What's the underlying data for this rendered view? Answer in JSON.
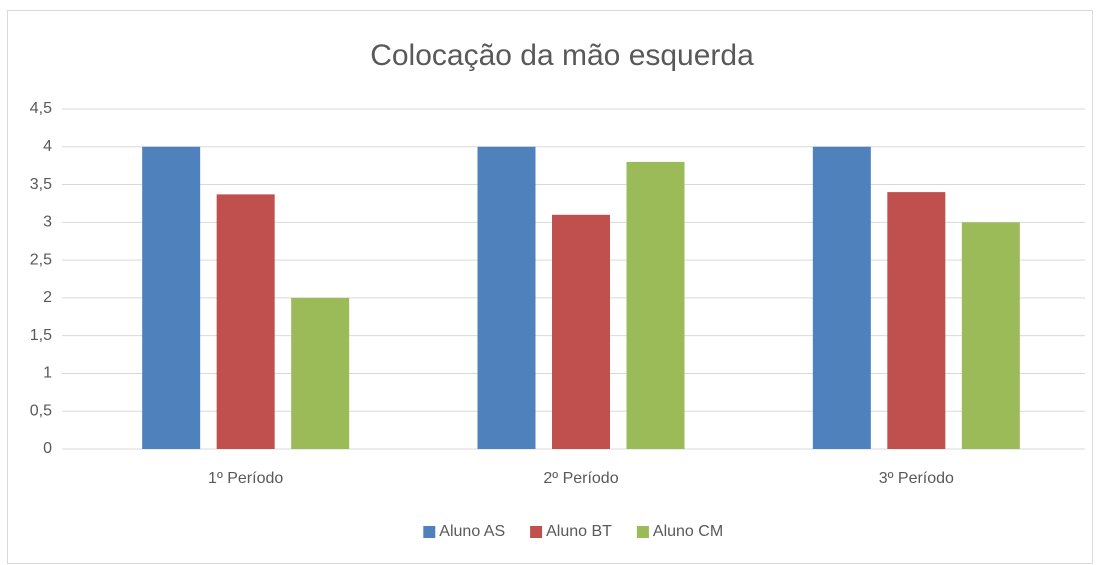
{
  "chart_data": {
    "type": "bar",
    "title": "Colocação da mão esquerda",
    "categories": [
      "1º Período",
      "2º Período",
      "3º Período"
    ],
    "series": [
      {
        "name": "Aluno AS",
        "color": "#4f81bd",
        "values": [
          4,
          4,
          4
        ]
      },
      {
        "name": "Aluno BT",
        "color": "#c0504d",
        "values": [
          3.37,
          3.1,
          3.4
        ]
      },
      {
        "name": "Aluno CM",
        "color": "#9bbb59",
        "values": [
          2,
          3.8,
          3
        ]
      }
    ],
    "ylim": [
      0,
      4.5
    ],
    "yticks": [
      0,
      {
        "value": 0.5,
        "label": "0,5"
      },
      1,
      {
        "value": 1.5,
        "label": "1,5"
      },
      2,
      {
        "value": 2.5,
        "label": "2,5"
      },
      3,
      {
        "value": 3.5,
        "label": "3,5"
      },
      4,
      {
        "value": 4.5,
        "label": "4,5"
      }
    ],
    "grid": true,
    "legend": "bottom"
  }
}
